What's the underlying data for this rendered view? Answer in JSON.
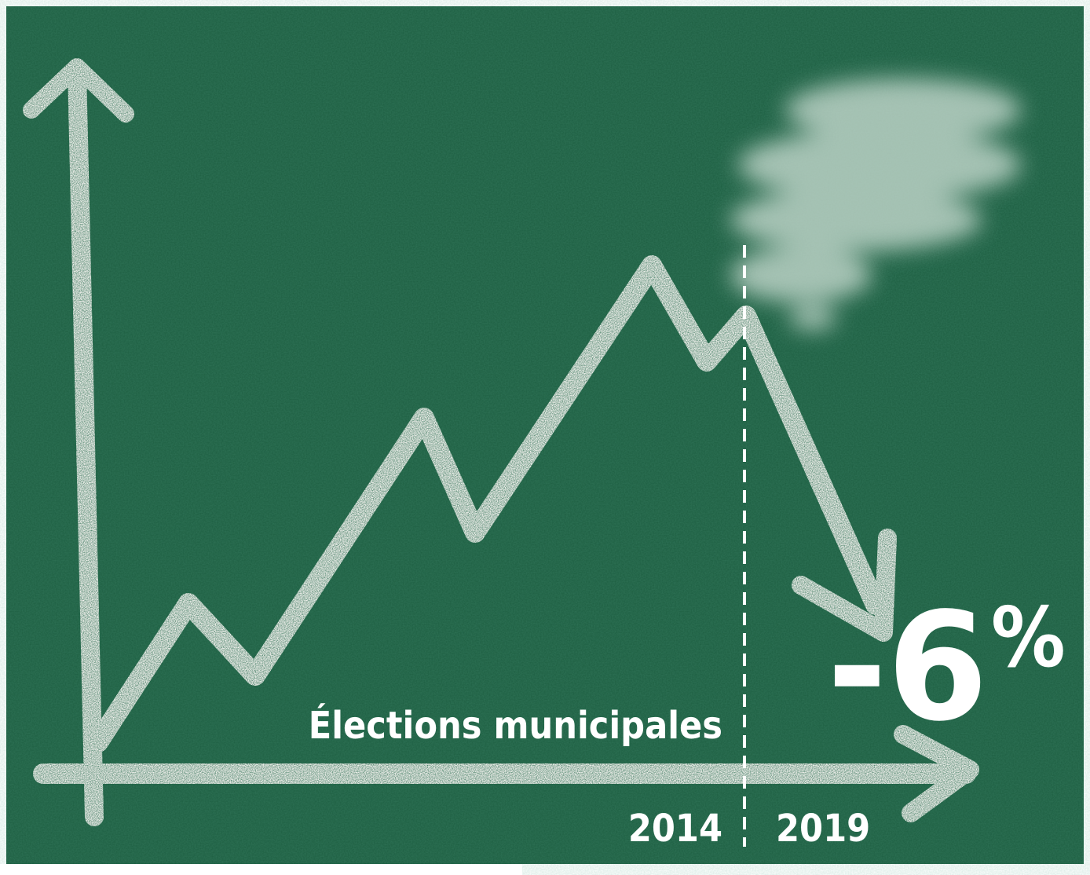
{
  "label": "Élections municipales",
  "years": [
    "2014",
    "2019"
  ],
  "change": -6,
  "unit": "%"
}
